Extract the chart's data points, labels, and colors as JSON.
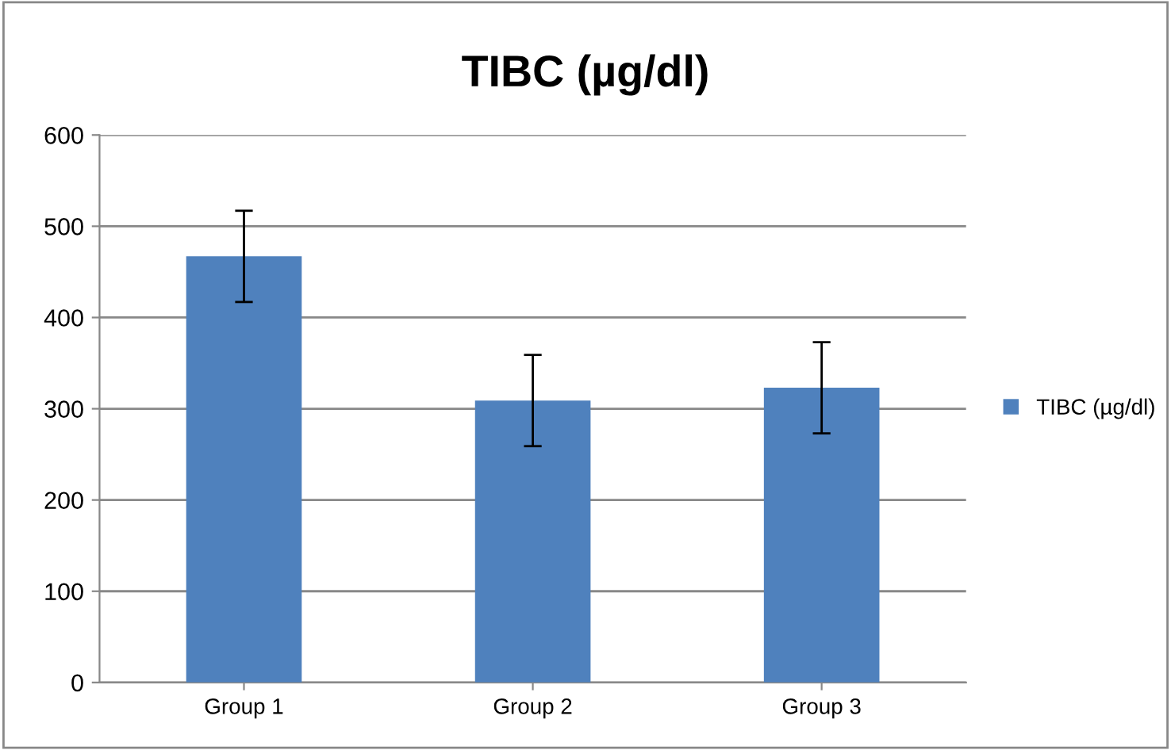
{
  "chart_data": {
    "type": "bar",
    "title": "TIBC (µg/dl)",
    "categories": [
      "Group 1",
      "Group 2",
      "Group 3"
    ],
    "series": [
      {
        "name": "TIBC (µg/dl)",
        "color": "#4f81bd",
        "values": [
          467,
          309,
          323
        ],
        "errors": [
          50,
          50,
          50
        ]
      }
    ],
    "ylim": [
      0,
      600
    ],
    "yticks": [
      0,
      100,
      200,
      300,
      400,
      500,
      600
    ],
    "grid": "y",
    "legend": "right"
  }
}
